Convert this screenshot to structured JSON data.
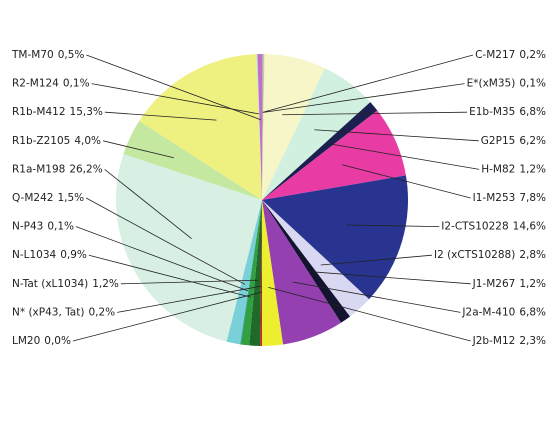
{
  "chart_data": {
    "type": "pie",
    "categories": [
      "C-M217",
      "E*(xM35)",
      "E1b-M35",
      "G2P15",
      "H-M82",
      "I1-M253",
      "I2-CTS10228",
      "I2 (xCTS10288)",
      "J1-M267",
      "J2a-M-410",
      "J2b-M12",
      "LM20",
      "N* (xP43, Tat)",
      "N-Tat (xL1034)",
      "N-L1034",
      "N-P43",
      "Q-M242",
      "R1a-M198",
      "R1b-Z2105",
      "R1b-M412",
      "R2-M124",
      "TM-M70"
    ],
    "values": [
      0.2,
      0.1,
      6.8,
      6.2,
      1.2,
      7.8,
      14.6,
      2.8,
      1.2,
      6.8,
      2.3,
      0.0,
      0.2,
      1.2,
      0.9,
      0.1,
      1.5,
      26.2,
      4.0,
      15.3,
      0.1,
      0.5
    ],
    "value_labels": [
      "0,2%",
      "0,1%",
      "6,8%",
      "6,2%",
      "1,2%",
      "7,8%",
      "14,6%",
      "2,8%",
      "1,2%",
      "6,8%",
      "2,3%",
      "0,0%",
      "0,2%",
      "1,2%",
      "0,9%",
      "0,1%",
      "1,5%",
      "26,2%",
      "4,0%",
      "15,3%",
      "0,1%",
      "0,5%"
    ],
    "colors": [
      "#b0b0b0",
      "#f0d8a0",
      "#f6f6c8",
      "#d2f0e0",
      "#1c2050",
      "#e83ca4",
      "#283490",
      "#d8d8f2",
      "#141430",
      "#9440b0",
      "#eeee30",
      "#ffffff",
      "#d02020",
      "#1f6a2a",
      "#30a040",
      "#2a9a9a",
      "#7ad0d8",
      "#d8f0e4",
      "#c4e8a0",
      "#eef080",
      "#b8e0f0",
      "#c070c8"
    ]
  }
}
